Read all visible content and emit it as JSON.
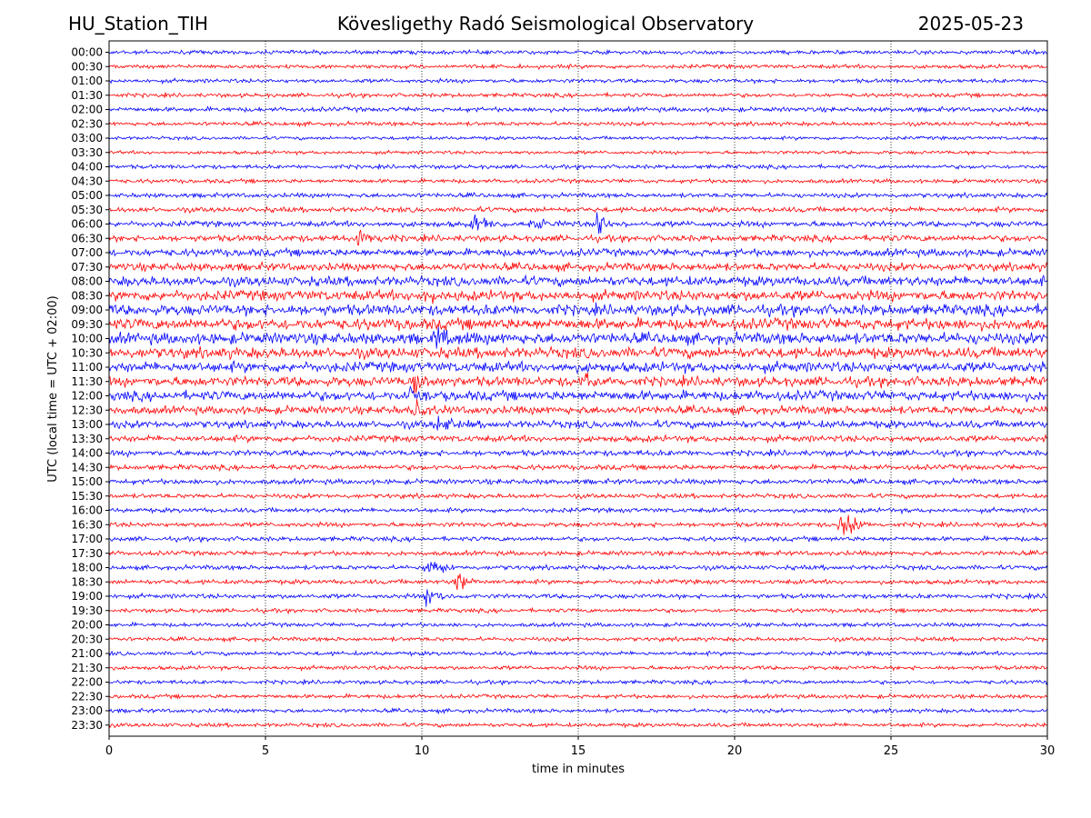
{
  "header": {
    "station": "HU_Station_TIH",
    "title": "Kövesligethy Radó Seismological Observatory",
    "date": "2025-05-23"
  },
  "chart_data": {
    "type": "line",
    "title": "Kövesligethy Radó Seismological Observatory",
    "xlabel": "time in minutes",
    "ylabel": "UTC (local time = UTC + 02:00)",
    "xlim": [
      0,
      30
    ],
    "x_ticks": [
      0,
      5,
      10,
      15,
      20,
      25,
      30
    ],
    "grid": "vertical dotted lines at x ticks",
    "colors": {
      "even_rows": "#0000ff",
      "odd_rows": "#ff0000"
    },
    "rows": [
      {
        "label": "00:00",
        "noise": 0.35
      },
      {
        "label": "00:30",
        "noise": 0.35
      },
      {
        "label": "01:00",
        "noise": 0.35
      },
      {
        "label": "01:30",
        "noise": 0.35
      },
      {
        "label": "02:00",
        "noise": 0.4
      },
      {
        "label": "02:30",
        "noise": 0.35
      },
      {
        "label": "03:00",
        "noise": 0.3
      },
      {
        "label": "03:30",
        "noise": 0.3
      },
      {
        "label": "04:00",
        "noise": 0.35
      },
      {
        "label": "04:30",
        "noise": 0.35
      },
      {
        "label": "05:00",
        "noise": 0.4
      },
      {
        "label": "05:30",
        "noise": 0.45
      },
      {
        "label": "06:00",
        "noise": 0.5
      },
      {
        "label": "06:30",
        "noise": 0.55
      },
      {
        "label": "07:00",
        "noise": 0.65
      },
      {
        "label": "07:30",
        "noise": 0.7
      },
      {
        "label": "08:00",
        "noise": 0.85
      },
      {
        "label": "08:30",
        "noise": 0.9
      },
      {
        "label": "09:00",
        "noise": 0.95
      },
      {
        "label": "09:30",
        "noise": 1.0
      },
      {
        "label": "10:00",
        "noise": 1.0
      },
      {
        "label": "10:30",
        "noise": 0.95
      },
      {
        "label": "11:00",
        "noise": 0.9
      },
      {
        "label": "11:30",
        "noise": 0.85
      },
      {
        "label": "12:00",
        "noise": 0.85
      },
      {
        "label": "12:30",
        "noise": 0.7
      },
      {
        "label": "13:00",
        "noise": 0.65
      },
      {
        "label": "13:30",
        "noise": 0.55
      },
      {
        "label": "14:00",
        "noise": 0.5
      },
      {
        "label": "14:30",
        "noise": 0.45
      },
      {
        "label": "15:00",
        "noise": 0.45
      },
      {
        "label": "15:30",
        "noise": 0.4
      },
      {
        "label": "16:00",
        "noise": 0.4
      },
      {
        "label": "16:30",
        "noise": 0.4
      },
      {
        "label": "17:00",
        "noise": 0.4
      },
      {
        "label": "17:30",
        "noise": 0.4
      },
      {
        "label": "18:00",
        "noise": 0.4
      },
      {
        "label": "18:30",
        "noise": 0.4
      },
      {
        "label": "19:00",
        "noise": 0.4
      },
      {
        "label": "19:30",
        "noise": 0.35
      },
      {
        "label": "20:00",
        "noise": 0.35
      },
      {
        "label": "20:30",
        "noise": 0.35
      },
      {
        "label": "21:00",
        "noise": 0.35
      },
      {
        "label": "21:30",
        "noise": 0.35
      },
      {
        "label": "22:00",
        "noise": 0.35
      },
      {
        "label": "22:30",
        "noise": 0.35
      },
      {
        "label": "23:00",
        "noise": 0.35
      },
      {
        "label": "23:30",
        "noise": 0.35
      }
    ],
    "events": [
      {
        "row": "06:00",
        "t": 11.7,
        "amp": 1.6
      },
      {
        "row": "06:00",
        "t": 13.5,
        "amp": 1.5
      },
      {
        "row": "06:00",
        "t": 15.6,
        "amp": 1.8
      },
      {
        "row": "06:30",
        "t": 8.0,
        "amp": 2.0
      },
      {
        "row": "08:30",
        "t": 10.0,
        "amp": 1.5
      },
      {
        "row": "10:00",
        "t": 10.5,
        "amp": 1.6
      },
      {
        "row": "11:30",
        "t": 9.8,
        "amp": 2.3
      },
      {
        "row": "11:30",
        "t": 15.2,
        "amp": 1.6
      },
      {
        "row": "12:00",
        "t": 9.6,
        "amp": 1.8
      },
      {
        "row": "12:30",
        "t": 9.8,
        "amp": 1.6
      },
      {
        "row": "13:00",
        "t": 10.5,
        "amp": 1.6
      },
      {
        "row": "16:30",
        "t": 23.4,
        "amp": 2.8
      },
      {
        "row": "18:00",
        "t": 10.2,
        "amp": 1.4
      },
      {
        "row": "18:30",
        "t": 11.1,
        "amp": 1.8
      },
      {
        "row": "19:00",
        "t": 10.2,
        "amp": 1.6
      }
    ]
  }
}
